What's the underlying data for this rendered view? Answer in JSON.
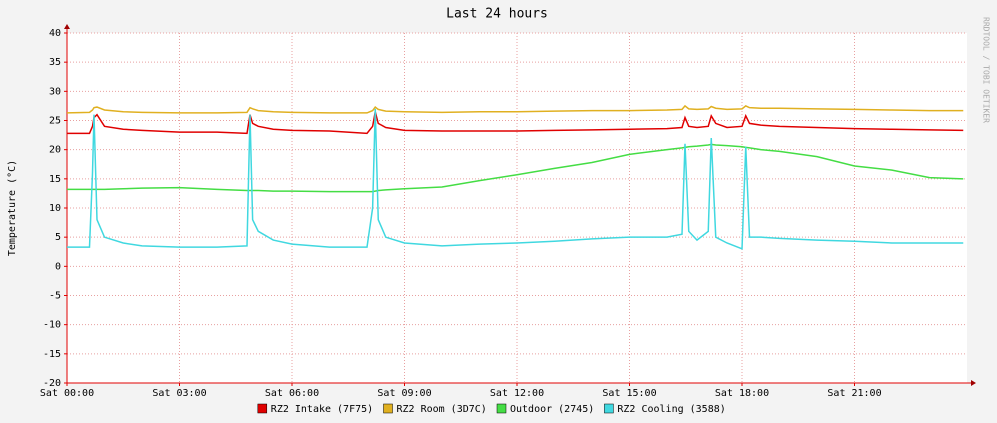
{
  "chart_data": {
    "type": "line",
    "title": "Last 24 hours",
    "y_label": "Temperature (°C)",
    "watermark": "RRDTOOL / TOBI OETIKER",
    "x": [
      0,
      0.6,
      0.68,
      0.72,
      0.8,
      1.0,
      1.5,
      2,
      3,
      4,
      4.8,
      4.88,
      4.95,
      5.1,
      5.5,
      6,
      7,
      8,
      8.15,
      8.22,
      8.3,
      8.5,
      9,
      10,
      11,
      12,
      13,
      14,
      15,
      16,
      16.4,
      16.48,
      16.58,
      16.8,
      17.1,
      17.18,
      17.3,
      17.6,
      18.0,
      18.1,
      18.2,
      18.5,
      19,
      20,
      21,
      22,
      23,
      23.9
    ],
    "series": [
      {
        "name": "RZ2 Intake (7F75)",
        "color": "#e00000",
        "values": [
          22.8,
          22.8,
          24,
          25.5,
          26,
          24,
          23.5,
          23.3,
          23,
          23,
          22.8,
          26,
          24.5,
          24,
          23.5,
          23.3,
          23.2,
          22.8,
          24,
          26.5,
          24.5,
          23.8,
          23.3,
          23.2,
          23.2,
          23.2,
          23.3,
          23.4,
          23.5,
          23.6,
          23.8,
          25.5,
          24,
          23.8,
          24,
          25.8,
          24.5,
          23.8,
          24,
          25.8,
          24.5,
          24.2,
          24,
          23.8,
          23.6,
          23.5,
          23.4,
          23.3
        ]
      },
      {
        "name": "RZ2 Room (3D7C)",
        "color": "#e0b020",
        "values": [
          26.3,
          26.4,
          26.8,
          27.2,
          27.3,
          26.8,
          26.5,
          26.4,
          26.3,
          26.3,
          26.4,
          27.2,
          27,
          26.7,
          26.5,
          26.4,
          26.3,
          26.3,
          26.7,
          27.3,
          26.9,
          26.6,
          26.5,
          26.4,
          26.5,
          26.5,
          26.6,
          26.7,
          26.7,
          26.8,
          26.9,
          27.5,
          27,
          26.9,
          27,
          27.4,
          27.1,
          26.9,
          27,
          27.5,
          27.2,
          27.1,
          27.1,
          27,
          26.9,
          26.8,
          26.7,
          26.7
        ]
      },
      {
        "name": "Outdoor (2745)",
        "color": "#44dd44",
        "values": [
          13.2,
          13.2,
          13.2,
          13.2,
          13.2,
          13.2,
          13.3,
          13.4,
          13.5,
          13.2,
          13,
          13,
          13,
          13,
          12.9,
          12.9,
          12.8,
          12.8,
          12.8,
          12.9,
          13,
          13.1,
          13.3,
          13.6,
          14.7,
          15.7,
          16.8,
          17.8,
          19.2,
          20,
          20.3,
          20.4,
          20.5,
          20.6,
          20.8,
          20.9,
          20.8,
          20.7,
          20.5,
          20.4,
          20.3,
          20,
          19.7,
          18.8,
          17.2,
          16.5,
          15.2,
          15
        ]
      },
      {
        "name": "RZ2 Cooling (3588)",
        "color": "#40d8e0",
        "values": [
          3.3,
          3.3,
          16,
          26,
          8,
          5,
          4,
          3.5,
          3.3,
          3.3,
          3.5,
          26,
          8,
          6,
          4.5,
          3.8,
          3.3,
          3.3,
          10,
          27,
          8,
          5,
          4,
          3.5,
          3.8,
          4,
          4.3,
          4.7,
          5,
          5,
          5.5,
          21,
          6,
          4.5,
          6,
          22,
          5,
          4,
          3,
          20.5,
          5,
          5,
          4.8,
          4.5,
          4.3,
          4,
          4,
          4
        ]
      }
    ],
    "xlim": [
      0,
      24
    ],
    "xticks": [
      {
        "value": 0,
        "label": "Sat 00:00"
      },
      {
        "value": 3,
        "label": "Sat 03:00"
      },
      {
        "value": 6,
        "label": "Sat 06:00"
      },
      {
        "value": 9,
        "label": "Sat 09:00"
      },
      {
        "value": 12,
        "label": "Sat 12:00"
      },
      {
        "value": 15,
        "label": "Sat 15:00"
      },
      {
        "value": 18,
        "label": "Sat 18:00"
      },
      {
        "value": 21,
        "label": "Sat 21:00"
      }
    ],
    "ylim": [
      -20,
      40
    ],
    "yticks": [
      -20,
      -15,
      -10,
      -5,
      0,
      5,
      10,
      15,
      20,
      25,
      30,
      35,
      40
    ],
    "grid": true
  }
}
